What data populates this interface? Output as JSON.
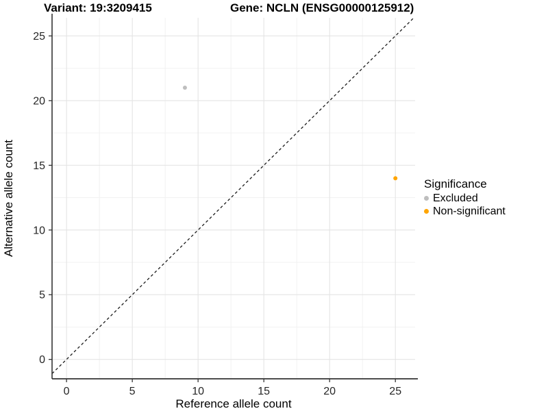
{
  "titles": {
    "left": "Variant: 19:3209415",
    "right": "Gene: NCLN (ENSG00000125912)"
  },
  "legend": {
    "title": "Significance",
    "items": [
      {
        "label": "Excluded",
        "color": "#BEBEBE"
      },
      {
        "label": "Non-significant",
        "color": "#FFA500"
      }
    ]
  },
  "chart_data": {
    "type": "scatter",
    "title": "Variant: 19:3209415  /  Gene: NCLN (ENSG00000125912)",
    "xlabel": "Reference allele count",
    "ylabel": "Alternative allele count",
    "xlim": [
      -1.1,
      26.5
    ],
    "ylim": [
      -1.5,
      26.4
    ],
    "xticks": [
      0,
      5,
      10,
      15,
      20,
      25
    ],
    "yticks": [
      0,
      5,
      10,
      15,
      20,
      25
    ],
    "minor_xticks": [
      2.5,
      7.5,
      12.5,
      17.5,
      22.5
    ],
    "minor_yticks": [
      2.5,
      7.5,
      12.5,
      17.5,
      22.5
    ],
    "grid": true,
    "legend_title": "Significance",
    "legend_position": "right",
    "series": [
      {
        "name": "Excluded",
        "color": "#BEBEBE",
        "points": [
          [
            9,
            21
          ]
        ]
      },
      {
        "name": "Non-significant",
        "color": "#FFA500",
        "points": [
          [
            25,
            14
          ]
        ]
      }
    ],
    "identity_line": {
      "equation": "y = x",
      "style": "dashed",
      "color": "#1A1A1A"
    },
    "colors": {
      "major_grid": "#e4e4e4",
      "minor_grid": "#f0f0f0",
      "axis_line": "#333333",
      "tick_label": "#262626",
      "axis_title": "#000000"
    }
  }
}
